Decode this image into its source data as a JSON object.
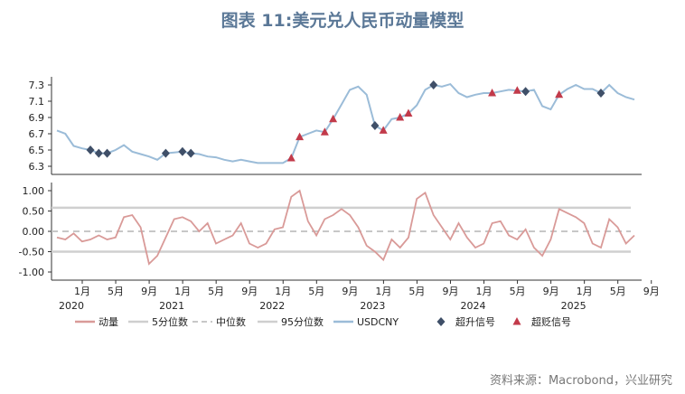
{
  "title": "图表 11:美元兑人民币动量模型",
  "source": "资料来源：Macrobond，兴业研究",
  "colors": {
    "momentum": "#d99a98",
    "usdcny": "#9bbcd8",
    "quantile": "#cfcfcf",
    "median": "#c7c7c7",
    "upgrade": "#3f4f68",
    "overshoot": "#c23a4a"
  },
  "chart_data": [
    {
      "type": "line",
      "panel": "top",
      "series_name": "USDCNY",
      "ylim": [
        6.2,
        7.4
      ],
      "yticks": [
        "7.3",
        "7.1",
        "6.9",
        "6.7",
        "6.5",
        "6.3"
      ],
      "x": [
        "2020-01",
        "2020-02",
        "2020-03",
        "2020-04",
        "2020-05",
        "2020-06",
        "2020-07",
        "2020-08",
        "2020-09",
        "2020-10",
        "2020-11",
        "2020-12",
        "2021-01",
        "2021-02",
        "2021-03",
        "2021-04",
        "2021-05",
        "2021-06",
        "2021-07",
        "2021-08",
        "2021-09",
        "2021-10",
        "2021-11",
        "2021-12",
        "2022-01",
        "2022-02",
        "2022-03",
        "2022-04",
        "2022-05",
        "2022-06",
        "2022-07",
        "2022-08",
        "2022-09",
        "2022-10",
        "2022-11",
        "2022-12",
        "2023-01",
        "2023-02",
        "2023-03",
        "2023-04",
        "2023-05",
        "2023-06",
        "2023-07",
        "2023-08",
        "2023-09",
        "2023-10",
        "2023-11",
        "2023-12",
        "2024-01",
        "2024-02",
        "2024-03",
        "2024-04",
        "2024-05",
        "2024-06",
        "2024-07",
        "2024-08",
        "2024-09",
        "2024-10",
        "2024-11",
        "2024-12",
        "2025-01",
        "2025-02",
        "2025-03",
        "2025-04",
        "2025-05",
        "2025-06",
        "2025-07",
        "2025-08",
        "2025-09",
        "2025-10"
      ],
      "values": [
        6.74,
        6.7,
        6.55,
        6.52,
        6.5,
        6.46,
        6.46,
        6.5,
        6.56,
        6.48,
        6.45,
        6.42,
        6.38,
        6.46,
        6.47,
        6.48,
        6.46,
        6.45,
        6.42,
        6.41,
        6.38,
        6.36,
        6.38,
        6.36,
        6.34,
        6.34,
        6.34,
        6.34,
        6.4,
        6.66,
        6.7,
        6.74,
        6.72,
        6.88,
        7.06,
        7.24,
        7.28,
        7.18,
        6.8,
        6.74,
        6.88,
        6.9,
        6.95,
        7.05,
        7.24,
        7.3,
        7.28,
        7.31,
        7.2,
        7.15,
        7.18,
        7.2,
        7.2,
        7.22,
        7.24,
        7.23,
        7.22,
        7.24,
        7.04,
        7.0,
        7.18,
        7.25,
        7.3,
        7.25,
        7.25,
        7.2,
        7.3,
        7.2,
        7.15,
        7.12
      ]
    },
    {
      "type": "line",
      "panel": "bottom",
      "series_name": "动量",
      "ylim": [
        -1.2,
        1.2
      ],
      "yticks": [
        "1.00",
        "0.50",
        "0.00",
        "-0.50",
        "-1.00"
      ],
      "reference_lines": {
        "p5": -0.5,
        "median": 0.0,
        "p95": 0.58
      },
      "values": [
        -0.15,
        -0.2,
        -0.05,
        -0.25,
        -0.2,
        -0.1,
        -0.2,
        -0.15,
        0.35,
        0.4,
        0.1,
        -0.8,
        -0.6,
        -0.15,
        0.3,
        0.35,
        0.25,
        0.0,
        0.2,
        -0.3,
        -0.2,
        -0.1,
        0.2,
        -0.3,
        -0.4,
        -0.3,
        0.05,
        0.1,
        0.85,
        1.0,
        0.25,
        -0.1,
        0.3,
        0.4,
        0.55,
        0.4,
        0.1,
        -0.35,
        -0.5,
        -0.7,
        -0.2,
        -0.4,
        -0.15,
        0.8,
        0.95,
        0.4,
        0.1,
        -0.2,
        0.2,
        -0.15,
        -0.4,
        -0.3,
        0.2,
        0.25,
        -0.1,
        -0.2,
        0.05,
        -0.4,
        -0.6,
        -0.2,
        0.55,
        0.45,
        0.35,
        0.2,
        -0.3,
        -0.4,
        0.3,
        0.1,
        -0.3,
        -0.1
      ]
    }
  ],
  "x_axis": {
    "month_labels": [
      "1月",
      "5月",
      "9月",
      "1月",
      "5月",
      "9月",
      "1月",
      "5月",
      "9月",
      "1月",
      "5月",
      "9月",
      "1月",
      "5月",
      "9月",
      "1月",
      "5月",
      "9月"
    ],
    "year_labels": [
      "2020",
      "2021",
      "2022",
      "2023",
      "2024",
      "2025"
    ]
  },
  "markers": {
    "upgrade_dates": [
      "2020-05",
      "2020-06",
      "2020-07",
      "2021-02",
      "2021-04",
      "2021-05",
      "2023-03",
      "2023-10",
      "2024-09",
      "2025-06"
    ],
    "overshoot_dates": [
      "2022-05",
      "2022-06",
      "2022-09",
      "2022-10",
      "2023-04",
      "2023-06",
      "2023-07",
      "2024-05",
      "2024-08",
      "2025-01"
    ]
  },
  "legend": [
    {
      "label": "动量",
      "kind": "line",
      "color": "#d99a98"
    },
    {
      "label": "5分位数",
      "kind": "line",
      "color": "#cfcfcf"
    },
    {
      "label": "中位数",
      "kind": "dash",
      "color": "#c7c7c7"
    },
    {
      "label": "95分位数",
      "kind": "line",
      "color": "#cfcfcf"
    },
    {
      "label": "USDCNY",
      "kind": "line",
      "color": "#9bbcd8"
    },
    {
      "label": "超升信号",
      "kind": "diamond",
      "color": "#3f4f68"
    },
    {
      "label": "超贬信号",
      "kind": "triangle",
      "color": "#c23a4a"
    }
  ]
}
